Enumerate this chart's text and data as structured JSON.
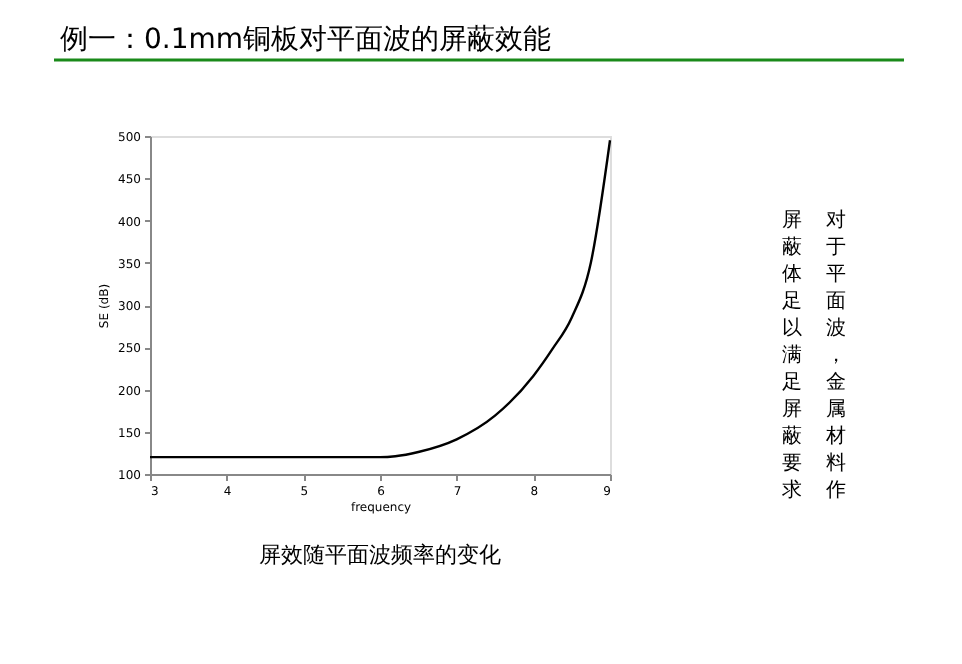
{
  "chart_data": {
    "type": "line",
    "title": "例一：0.1mm铜板对平面波的屏蔽效能",
    "xlabel": "frequency",
    "ylabel": "SE (dB)",
    "x": [
      3,
      4,
      5,
      6,
      6.2,
      6.5,
      7,
      7.5,
      8,
      8.25,
      8.5,
      8.75,
      9
    ],
    "series": [
      {
        "color": "#000000",
        "values": [
          120,
          120,
          120,
          120,
          121,
          126,
          141,
          169,
          216,
          248,
          285,
          350,
          495
        ]
      }
    ],
    "xlim": [
      3,
      9
    ],
    "xticks": [
      3,
      4,
      5,
      6,
      7,
      8,
      9
    ],
    "ylim": [
      100,
      500
    ],
    "yticks": [
      100,
      150,
      200,
      250,
      300,
      350,
      400,
      450,
      500
    ],
    "grid": false,
    "marker": "none",
    "line_style": "solid",
    "annotations": [
      "屏效随平面波频率的变化",
      "对于平面波，金属材料作",
      "屏蔽体足以满足屏蔽要求"
    ]
  }
}
